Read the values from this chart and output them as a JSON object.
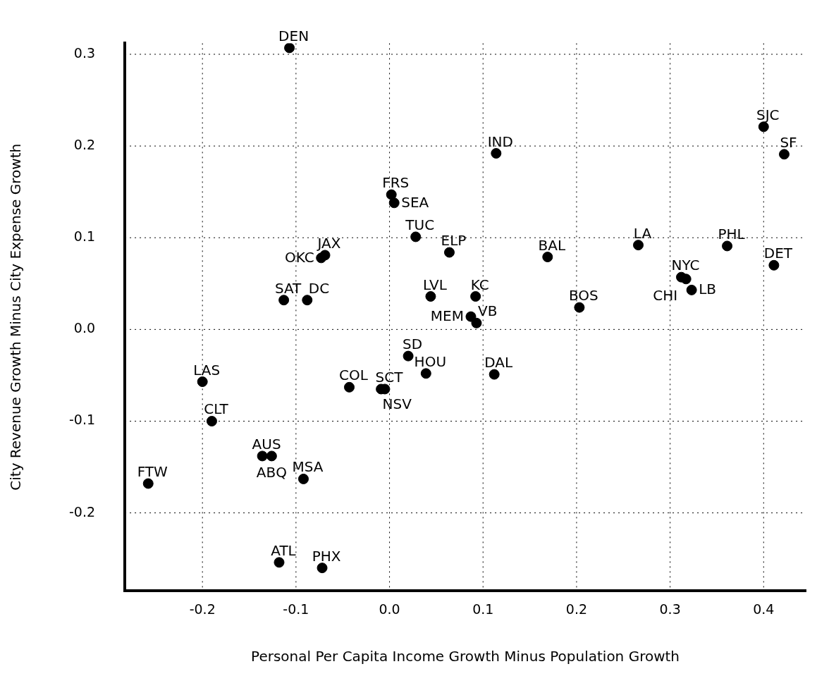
{
  "chart_data": {
    "type": "scatter",
    "xlabel": "Personal Per Capita Income Growth Minus Population Growth",
    "ylabel": "City Revenue Growth Minus City Expense Growth",
    "x": [
      -0.107,
      0.4,
      0.422,
      0.114,
      0.002,
      0.005,
      0.028,
      0.064,
      -0.073,
      -0.069,
      0.169,
      0.266,
      0.361,
      0.411,
      0.312,
      0.317,
      0.323,
      -0.113,
      -0.088,
      0.044,
      0.092,
      0.203,
      0.087,
      0.093,
      0.02,
      0.112,
      -0.005,
      -0.043,
      0.039,
      -0.2,
      -0.19,
      -0.136,
      -0.126,
      -0.092,
      -0.258,
      -0.118,
      -0.072,
      -0.009
    ],
    "values": [
      0.307,
      0.221,
      0.191,
      0.192,
      0.147,
      0.138,
      0.101,
      0.084,
      0.078,
      0.081,
      0.079,
      0.092,
      0.091,
      0.07,
      0.057,
      0.055,
      0.043,
      0.032,
      0.032,
      0.036,
      0.036,
      0.024,
      0.014,
      0.007,
      -0.029,
      -0.049,
      -0.065,
      -0.063,
      -0.048,
      -0.057,
      -0.1,
      -0.138,
      -0.138,
      -0.163,
      -0.168,
      -0.254,
      -0.26,
      -0.065
    ],
    "value_labels": [
      "DEN",
      "SJC",
      "SF",
      "IND",
      "FRS",
      "SEA",
      "TUC",
      "ELP",
      "OKC",
      "JAX",
      "BAL",
      "LA",
      "PHL",
      "DET",
      "NYC",
      "CHI",
      "LB",
      "SAT",
      "DC",
      "LVL",
      "KC",
      "BOS",
      "MEM",
      "VB",
      "SD",
      "DAL",
      "SCT",
      "COL",
      "HOU",
      "LAS",
      "CLT",
      "AUS",
      "ABQ",
      "MSA",
      "FTW",
      "ATL",
      "PHX",
      "NSV"
    ],
    "color": "#000000",
    "marker": "circle",
    "grid": true,
    "legend": false,
    "xlim": [
      -0.283,
      0.445
    ],
    "ylim": [
      -0.285,
      0.312
    ],
    "xticks": [
      -0.2,
      -0.1,
      {
        "value": 0,
        "label": "0.0"
      },
      0.1,
      0.2,
      0.3,
      0.4
    ],
    "yticks": [
      -0.2,
      -0.1,
      {
        "value": 0,
        "label": "0.0"
      },
      0.1,
      0.2,
      0.3
    ]
  }
}
